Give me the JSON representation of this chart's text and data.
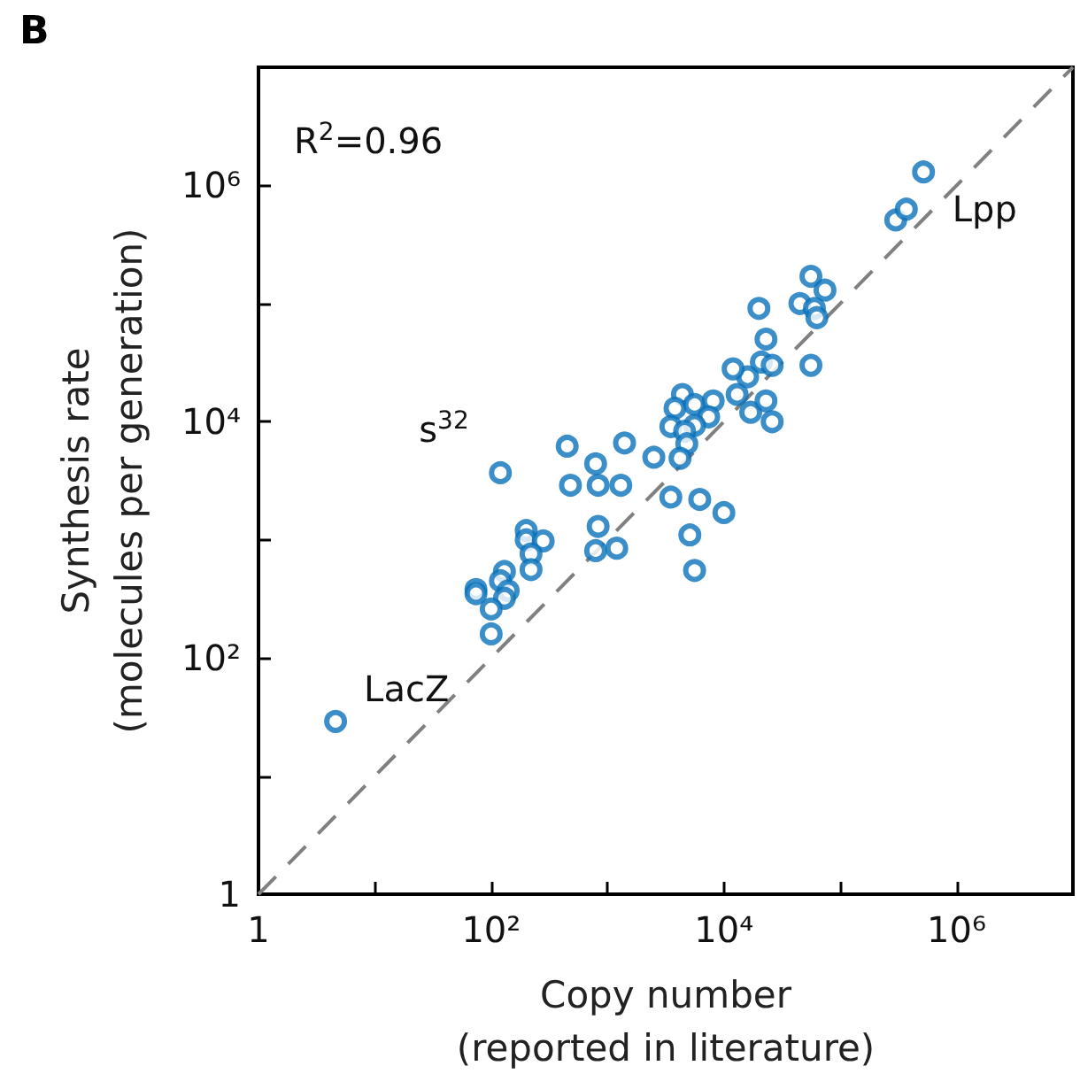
{
  "chart_data": {
    "type": "scatter",
    "title": "B",
    "xlabel": "Copy number\n(reported in literature)",
    "ylabel": "Synthesis rate\n(molecules per generation)",
    "log": "xy",
    "grid": false,
    "marker": "circle",
    "xlim": [
      1,
      10000000
    ],
    "ylim": [
      1,
      10000000
    ],
    "xticks": [
      1,
      {
        "value": 10,
        "label": null
      },
      {
        "value": 100,
        "label": "10²"
      },
      {
        "value": 1000,
        "label": null
      },
      {
        "value": 10000,
        "label": "10⁴"
      },
      {
        "value": 100000,
        "label": null
      },
      {
        "value": 1000000,
        "label": "10⁶"
      },
      {
        "value": 10000000,
        "label": null
      }
    ],
    "yticks": [
      1,
      {
        "value": 10,
        "label": null
      },
      {
        "value": 100,
        "label": "10²"
      },
      {
        "value": 1000,
        "label": null
      },
      {
        "value": 10000,
        "label": "10⁴"
      },
      {
        "value": 100000,
        "label": null
      },
      {
        "value": 1000000,
        "label": "10⁶"
      },
      {
        "value": 10000000,
        "label": null
      }
    ],
    "annotations": [
      "R$^{2}$=0.96",
      {
        "text": "s$^{32}$",
        "x": 120,
        "y": 3700
      },
      {
        "text": "LacZ",
        "x": 4.6,
        "y": 29
      },
      {
        "text": "Lpp",
        "x": 370000,
        "y": 630000
      }
    ],
    "series": [
      {
        "color": "#0a72ba",
        "x": [
          520000,
          300000,
          370000,
          56000,
          74000,
          45000,
          60000,
          63000,
          56000,
          20000,
          23000,
          21000,
          26000,
          16000,
          12000,
          13000,
          17000,
          23000,
          26000,
          4400,
          3800,
          5600,
          8100,
          7400,
          5600,
          3500,
          4600,
          4800,
          4200,
          2500,
          1400,
          450,
          790,
          120,
          480,
          830,
          1300,
          3500,
          6200,
          10000,
          5100,
          5600,
          830,
          790,
          1200,
          200,
          200,
          280,
          220,
          220,
          130,
          120,
          74,
          74,
          140,
          130,
          100,
          100,
          4.6
        ],
        "values": [
          1300000,
          510000,
          630000,
          170000,
          130000,
          100000,
          91000,
          76000,
          30000,
          91000,
          50000,
          32000,
          30000,
          24000,
          28000,
          17000,
          12000,
          15000,
          10000,
          17000,
          13000,
          14000,
          15000,
          11000,
          9300,
          9100,
          8300,
          6500,
          4900,
          5000,
          6600,
          6200,
          4400,
          3700,
          2900,
          2900,
          2900,
          2300,
          2200,
          1700,
          1100,
          550,
          1300,
          810,
          850,
          1200,
          1000,
          980,
          760,
          560,
          540,
          450,
          380,
          350,
          370,
          320,
          260,
          160,
          29
        ]
      },
      {
        "type": "line",
        "color": "#808080",
        "line_style": "dashed",
        "marker": "none",
        "x": [
          1,
          10000000
        ],
        "values": [
          1,
          10000000
        ]
      }
    ]
  }
}
